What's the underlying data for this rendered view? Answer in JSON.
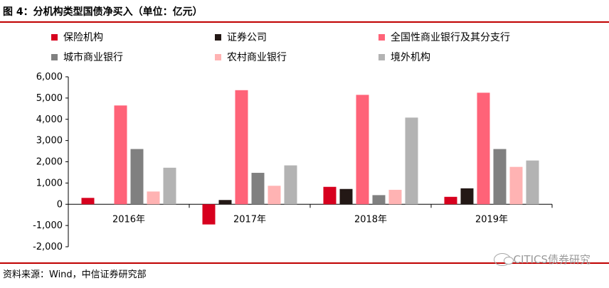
{
  "header": {
    "title": "图 4：分机构类型国债净买入（单位：亿元）"
  },
  "footer": {
    "source": "资料来源：Wind，中信证券研究部",
    "watermark": "CITICS债券研究"
  },
  "colors": {
    "rule": "#c00000"
  },
  "chart_data": {
    "type": "bar",
    "categories": [
      "2016年",
      "2017年",
      "2018年",
      "2019年"
    ],
    "ylim": [
      -2000,
      6000
    ],
    "yticks": [
      -2000,
      -1000,
      0,
      1000,
      2000,
      3000,
      4000,
      5000,
      6000
    ],
    "ytick_labels": [
      "-2,000",
      "-1,000",
      "0",
      "1,000",
      "2,000",
      "3,000",
      "4,000",
      "5,000",
      "6,000"
    ],
    "grid": false,
    "legend_position": "top",
    "series": [
      {
        "name": "保险机构",
        "color": "#d7001e",
        "values": [
          300,
          -950,
          820,
          350
        ]
      },
      {
        "name": "证券公司",
        "color": "#231815",
        "values": [
          0,
          200,
          720,
          750
        ]
      },
      {
        "name": "全国性商业银行及其分支行",
        "color": "#ff6378",
        "values": [
          4650,
          5370,
          5150,
          5250
        ]
      },
      {
        "name": "城市商业银行",
        "color": "#808080",
        "values": [
          2600,
          1480,
          430,
          2600
        ]
      },
      {
        "name": "农村商业银行",
        "color": "#ffb3b3",
        "values": [
          600,
          870,
          680,
          1760
        ]
      },
      {
        "name": "境外机构",
        "color": "#b3b3b3",
        "values": [
          1720,
          1830,
          4080,
          2060
        ]
      }
    ]
  }
}
